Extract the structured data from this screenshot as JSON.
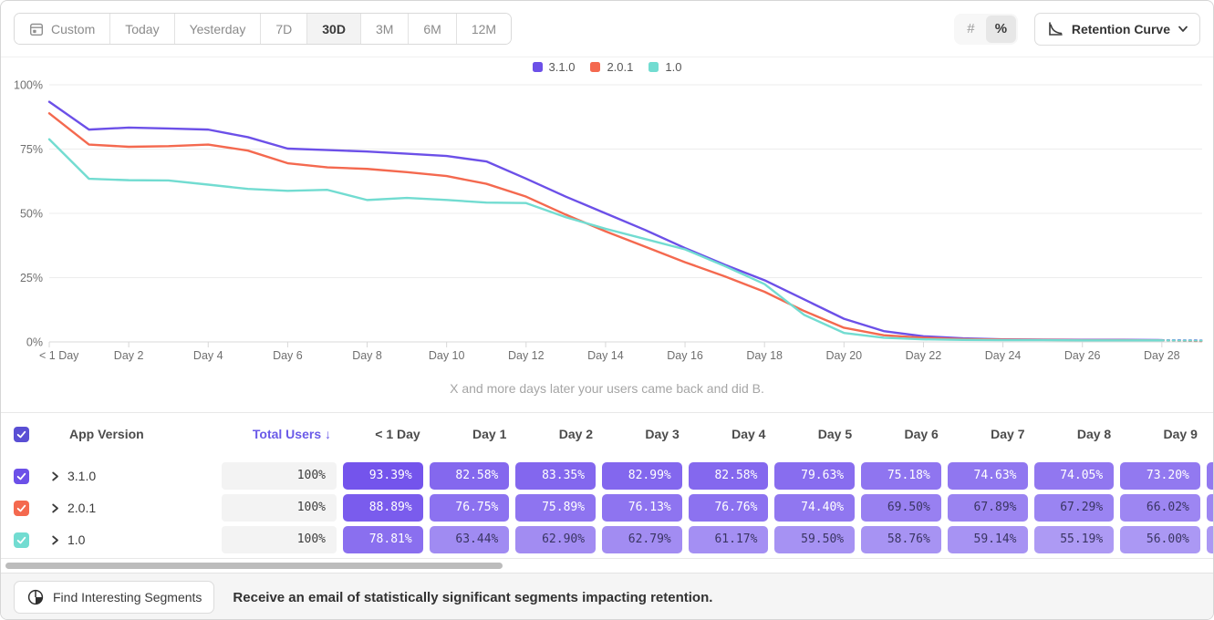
{
  "toolbar": {
    "date_ranges": [
      "Custom",
      "Today",
      "Yesterday",
      "7D",
      "30D",
      "3M",
      "6M",
      "12M"
    ],
    "selected_range": "30D",
    "format_toggle": {
      "options": [
        "#",
        "%"
      ],
      "selected": "%"
    },
    "chart_type_label": "Retention Curve"
  },
  "legend": [
    {
      "label": "3.1.0",
      "color": "#6C50E8"
    },
    {
      "label": "2.0.1",
      "color": "#F4694F"
    },
    {
      "label": "1.0",
      "color": "#72DCD1"
    }
  ],
  "chart_data": {
    "type": "line",
    "subtitle": "X and more days later your users came back and did B.",
    "ylim": [
      0,
      100
    ],
    "ytick_labels": [
      "0%",
      "25%",
      "50%",
      "75%",
      "100%"
    ],
    "ytick_values": [
      0,
      25,
      50,
      75,
      100
    ],
    "xtick_labels": [
      "< 1 Day",
      "Day 2",
      "Day 4",
      "Day 6",
      "Day 8",
      "Day 10",
      "Day 12",
      "Day 14",
      "Day 16",
      "Day 18",
      "Day 20",
      "Day 22",
      "Day 24",
      "Day 26",
      "Day 28"
    ],
    "xtick_days": [
      0,
      2,
      4,
      6,
      8,
      10,
      12,
      14,
      16,
      18,
      20,
      22,
      24,
      26,
      28
    ],
    "x_range_days": [
      0,
      29
    ],
    "grid": true,
    "legend_position": "top-center",
    "dashed_incomplete_from_day": 28,
    "series": [
      {
        "name": "3.1.0",
        "color": "#6C50E8",
        "values": [
          93.39,
          82.58,
          83.35,
          82.99,
          82.58,
          79.63,
          75.18,
          74.63,
          74.05,
          73.2,
          72.3,
          70.2,
          63.5,
          56.5,
          50.0,
          43.5,
          36.5,
          30.0,
          24.0,
          16.5,
          9.0,
          4.2,
          2.2,
          1.4,
          1.0,
          0.9,
          0.8,
          0.8,
          0.7,
          0.6
        ]
      },
      {
        "name": "2.0.1",
        "color": "#F4694F",
        "values": [
          88.89,
          76.75,
          75.89,
          76.13,
          76.76,
          74.4,
          69.5,
          67.89,
          67.29,
          66.02,
          64.5,
          61.5,
          56.5,
          49.5,
          43.0,
          37.0,
          31.0,
          25.5,
          19.5,
          12.0,
          5.5,
          2.6,
          1.6,
          1.1,
          0.9,
          0.8,
          0.7,
          0.7,
          0.6,
          0.3
        ]
      },
      {
        "name": "1.0",
        "color": "#72DCD1",
        "values": [
          78.81,
          63.44,
          62.9,
          62.79,
          61.17,
          59.5,
          58.76,
          59.14,
          55.19,
          56.0,
          55.2,
          54.2,
          54.0,
          48.5,
          44.0,
          40.0,
          36.0,
          29.5,
          22.5,
          10.5,
          3.5,
          1.6,
          1.0,
          0.8,
          0.7,
          0.7,
          0.6,
          0.6,
          0.6,
          0.5
        ]
      }
    ]
  },
  "table": {
    "columns": {
      "app_version": "App Version",
      "total_users": "Total Users",
      "sort_indicator": "↓",
      "days": [
        "< 1 Day",
        "Day 1",
        "Day 2",
        "Day 3",
        "Day 4",
        "Day 5",
        "Day 6",
        "Day 7",
        "Day 8",
        "Day 9"
      ]
    },
    "pill_base_rgb": [
      106,
      72,
      235
    ],
    "rows": [
      {
        "version": "3.1.0",
        "color": "#6C50E8",
        "total": "100%",
        "values": [
          "93.39%",
          "82.58%",
          "83.35%",
          "82.99%",
          "82.58%",
          "79.63%",
          "75.18%",
          "74.63%",
          "74.05%",
          "73.20%"
        ]
      },
      {
        "version": "2.0.1",
        "color": "#F4694F",
        "total": "100%",
        "values": [
          "88.89%",
          "76.75%",
          "75.89%",
          "76.13%",
          "76.76%",
          "74.40%",
          "69.50%",
          "67.89%",
          "67.29%",
          "66.02%"
        ]
      },
      {
        "version": "1.0",
        "color": "#72DCD1",
        "total": "100%",
        "values": [
          "78.81%",
          "63.44%",
          "62.90%",
          "62.79%",
          "61.17%",
          "59.50%",
          "58.76%",
          "59.14%",
          "55.19%",
          "56.00%"
        ]
      }
    ]
  },
  "footer": {
    "button_label": "Find Interesting Segments",
    "message": "Receive an email of statistically significant segments impacting retention."
  }
}
